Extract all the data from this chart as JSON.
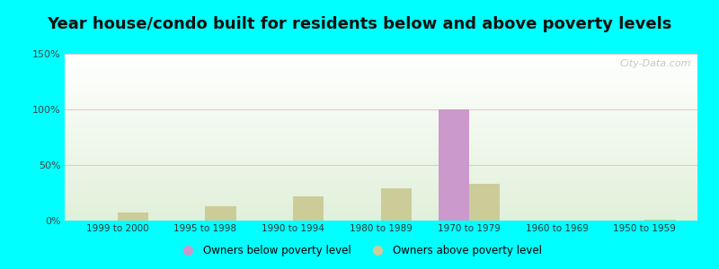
{
  "title": "Year house/condo built for residents below and above poverty levels",
  "categories": [
    "1999 to 2000",
    "1995 to 1998",
    "1990 to 1994",
    "1980 to 1989",
    "1970 to 1979",
    "1960 to 1969",
    "1950 to 1959"
  ],
  "below_poverty": [
    0,
    0,
    0,
    0,
    100,
    0,
    0
  ],
  "above_poverty": [
    7,
    13,
    22,
    29,
    33,
    0,
    1
  ],
  "below_color": "#cc99cc",
  "above_color": "#cccc99",
  "ylim": [
    0,
    150
  ],
  "yticks": [
    0,
    50,
    100,
    150
  ],
  "ytick_labels": [
    "0%",
    "50%",
    "100%",
    "150%"
  ],
  "background_color": "#00ffff",
  "legend_below": "Owners below poverty level",
  "legend_above": "Owners above poverty level",
  "bar_width": 0.35,
  "title_fontsize": 13,
  "watermark": "City-Data.com"
}
